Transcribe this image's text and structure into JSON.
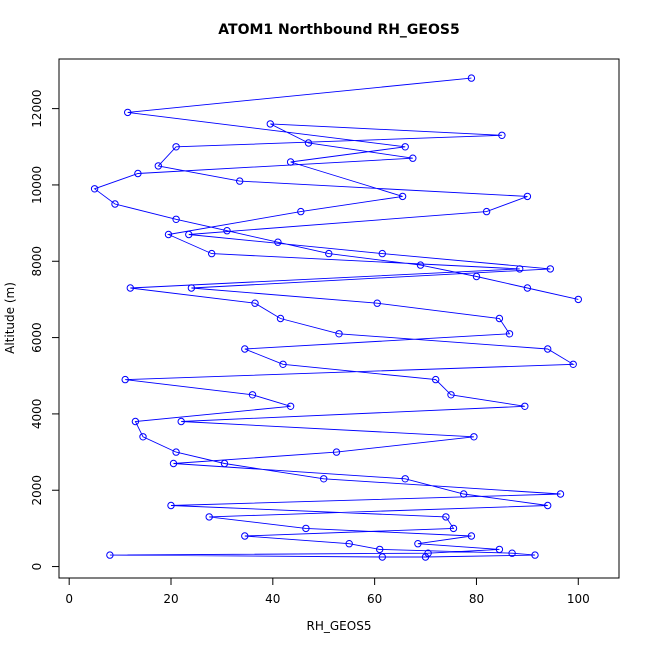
{
  "chart_data": {
    "type": "line",
    "title": "ATOM1 Northbound RH_GEOS5",
    "xlabel": "RH_GEOS5",
    "ylabel": "Altitude (m)",
    "xlim": [
      -2,
      108
    ],
    "ylim": [
      -300,
      13300
    ],
    "x_ticks": [
      0,
      20,
      40,
      60,
      80,
      100
    ],
    "y_ticks": [
      0,
      2000,
      4000,
      6000,
      8000,
      10000,
      12000
    ],
    "grid": false,
    "line_color": "#0000ff",
    "marker": "open-circle",
    "x": [
      79,
      11.5,
      66,
      43.5,
      65.5,
      45.5,
      19.5,
      28,
      88.5,
      12,
      36.5,
      41.5,
      53,
      94,
      99,
      11,
      36,
      43.5,
      13,
      14.5,
      21,
      30.5,
      50,
      96.5,
      20,
      74,
      75.5,
      34.5,
      55,
      61,
      87,
      91.5,
      70,
      61.5,
      8,
      70.5,
      84.5,
      68.5,
      79,
      46.5,
      27.5,
      94,
      77.5,
      66,
      20.5,
      52.5,
      79.5,
      22,
      89.5,
      75,
      72,
      42,
      34.5,
      86.5,
      84.5,
      60.5,
      24,
      94.5,
      61.5,
      23.5,
      82,
      90,
      33.5,
      17.5,
      21,
      85,
      39.5,
      47,
      67.5,
      13.5,
      5,
      9,
      21,
      31,
      41,
      51,
      69,
      80,
      90,
      100
    ],
    "y": [
      12800,
      11900,
      11000,
      10600,
      9700,
      9300,
      8700,
      8200,
      7800,
      7300,
      6900,
      6500,
      6100,
      5700,
      5300,
      4900,
      4500,
      4200,
      3800,
      3400,
      3000,
      2700,
      2300,
      1900,
      1600,
      1300,
      1000,
      800,
      600,
      450,
      350,
      300,
      250,
      250,
      300,
      350,
      450,
      600,
      800,
      1000,
      1300,
      1600,
      1900,
      2300,
      2700,
      3000,
      3400,
      3800,
      4200,
      4500,
      4900,
      5300,
      5700,
      6100,
      6500,
      6900,
      7300,
      7800,
      8200,
      8700,
      9300,
      9700,
      10100,
      10500,
      11000,
      11300,
      11600,
      11100,
      10700,
      10300,
      9900,
      9500,
      9100,
      8800,
      8500,
      8200,
      7900,
      7600,
      7300,
      7000
    ]
  }
}
